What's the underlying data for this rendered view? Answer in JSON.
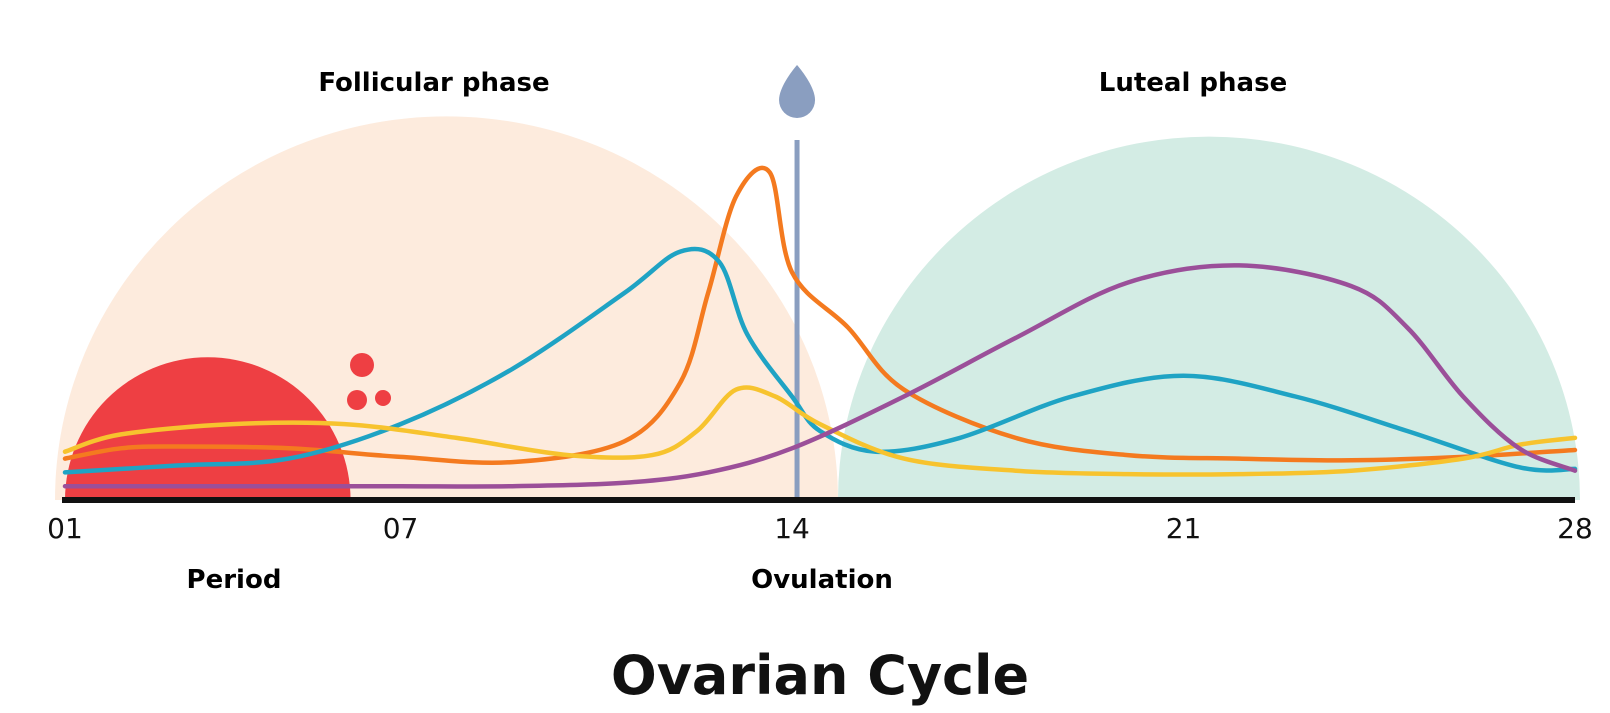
{
  "chart_data": {
    "type": "line",
    "title": "Ovarian Cycle",
    "x_ticks": [
      "01",
      "07",
      "14",
      "21",
      "28"
    ],
    "x_range": [
      1,
      28
    ],
    "phases": [
      {
        "name": "Follicular phase",
        "color": "#F28C38",
        "fill": "#FDEBDD",
        "start": 1,
        "end": 15
      },
      {
        "name": "Luteal phase",
        "color": "#4DB39A",
        "fill": "#D3ECE4",
        "start": 15,
        "end": 28
      }
    ],
    "period": {
      "label": "Period",
      "color": "#EE3F43",
      "start": 1,
      "end": 7
    },
    "ovulation": {
      "label": "Ovulation",
      "color": "#8A9EC0",
      "day": 14
    },
    "series": [
      {
        "key": "orange",
        "color": "#F47A1F",
        "x": [
          1,
          2,
          3,
          5,
          7,
          9,
          11,
          12,
          12.5,
          13,
          13.6,
          14,
          15,
          16,
          18,
          20,
          22,
          24,
          26,
          28
        ],
        "y": [
          0.12,
          0.15,
          0.155,
          0.15,
          0.125,
          0.11,
          0.17,
          0.34,
          0.6,
          0.88,
          0.95,
          0.66,
          0.5,
          0.32,
          0.18,
          0.13,
          0.12,
          0.115,
          0.125,
          0.145
        ]
      },
      {
        "key": "teal",
        "color": "#1FA3C4",
        "x": [
          1,
          3,
          5,
          7,
          9,
          11,
          12,
          12.7,
          13.2,
          14,
          14.5,
          15.5,
          17,
          19,
          21,
          23,
          25,
          27,
          28
        ],
        "y": [
          0.08,
          0.1,
          0.12,
          0.22,
          0.38,
          0.6,
          0.72,
          0.69,
          0.48,
          0.3,
          0.2,
          0.14,
          0.18,
          0.3,
          0.36,
          0.3,
          0.2,
          0.095,
          0.09
        ]
      },
      {
        "key": "yellow",
        "color": "#F7C32E",
        "x": [
          1,
          2,
          4,
          6,
          8,
          10,
          11.5,
          12.3,
          13,
          13.7,
          14.5,
          16,
          18,
          20,
          22,
          24,
          26,
          27,
          28
        ],
        "y": [
          0.14,
          0.19,
          0.22,
          0.22,
          0.18,
          0.13,
          0.13,
          0.2,
          0.32,
          0.3,
          0.22,
          0.12,
          0.085,
          0.075,
          0.075,
          0.085,
          0.12,
          0.16,
          0.18
        ]
      },
      {
        "key": "purple",
        "color": "#9B4F99",
        "x": [
          1,
          3,
          5,
          7,
          9,
          11,
          12.5,
          14,
          16,
          18,
          20,
          22,
          24,
          25,
          26,
          27,
          28
        ],
        "y": [
          0.04,
          0.04,
          0.04,
          0.04,
          0.04,
          0.05,
          0.08,
          0.15,
          0.3,
          0.47,
          0.63,
          0.68,
          0.62,
          0.5,
          0.3,
          0.15,
          0.085
        ]
      }
    ]
  }
}
